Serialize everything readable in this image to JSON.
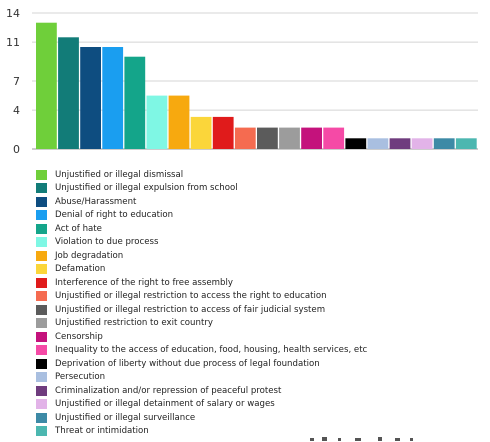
{
  "chart_data": {
    "type": "bar",
    "title": "",
    "xlabel": "",
    "ylabel": "",
    "ylim": [
      0,
      14
    ],
    "yticks": [
      0,
      4,
      7,
      11,
      14
    ],
    "grid": true,
    "legend": "bottom",
    "series": [
      {
        "name": "Unjustified or illegal dismissal",
        "value": 13,
        "color": "#6fcf3a"
      },
      {
        "name": "Unjustified or illegal expulsion from school",
        "value": 11.5,
        "color": "#127c78"
      },
      {
        "name": " Abuse/Harassment",
        "value": 10.5,
        "color": "#0e4d80"
      },
      {
        "name": "Denial of right to education",
        "value": 10.5,
        "color": "#1a9ef0"
      },
      {
        "name": "Act of hate",
        "value": 9.5,
        "color": "#14a58a"
      },
      {
        "name": "Violation to due process",
        "value": 5.5,
        "color": "#7ff7e4"
      },
      {
        "name": " Job degradation",
        "value": 5.5,
        "color": "#f7a90f"
      },
      {
        "name": "Defamation",
        "value": 3.3,
        "color": "#fbd63a"
      },
      {
        "name": "Interference of the right to free assembly",
        "value": 3.3,
        "color": "#e01b1b"
      },
      {
        "name": "Unjustified or illegal restriction to access the right to education",
        "value": 2.2,
        "color": "#f56b50"
      },
      {
        "name": "Unjustified or illegal restriction to access of fair judicial system",
        "value": 2.2,
        "color": "#5b5b5b"
      },
      {
        "name": "Unjustified restriction to exit country",
        "value": 2.2,
        "color": "#9c9c9c"
      },
      {
        "name": "Censorship",
        "value": 2.2,
        "color": "#c4127c"
      },
      {
        "name": "Inequality to the access of education, food, housing, health services, etc",
        "value": 2.2,
        "color": "#f54aa6"
      },
      {
        "name": "Deprivation of liberty without due process of legal foundation",
        "value": 1.1,
        "color": "#000000"
      },
      {
        "name": "Persecution",
        "value": 1.1,
        "color": "#a9bfe0"
      },
      {
        "name": "Criminalization and/or repression of peaceful protest",
        "value": 1.1,
        "color": "#6f3c7e"
      },
      {
        "name": "Unjustified or illegal detainment of salary or wages",
        "value": 1.1,
        "color": "#e2b3e8"
      },
      {
        "name": "Unjustified or illegal surveillance",
        "value": 1.1,
        "color": "#3d8aa6"
      },
      {
        "name": "Threat or intimidation",
        "value": 1.1,
        "color": "#4cb7b0"
      }
    ]
  }
}
